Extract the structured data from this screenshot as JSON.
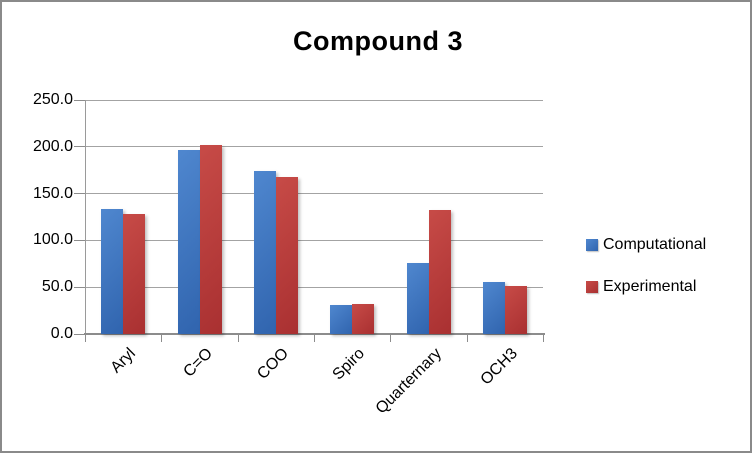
{
  "title": "Compound 3",
  "colors": {
    "frame_border": "#8a8a8a",
    "gridline": "#a3a3a3",
    "axis": "#8c8c8c",
    "text": "#000000"
  },
  "legend": {
    "items": [
      {
        "label": "Computational",
        "color_top": "#4f87cf",
        "color_bottom": "#3064ae"
      },
      {
        "label": "Experimental",
        "color_top": "#c74b47",
        "color_bottom": "#a93031"
      }
    ]
  },
  "chart_data": {
    "type": "bar",
    "title": "Compound 3",
    "categories": [
      "Aryl",
      "C=O",
      "COO",
      "Spiro",
      "Quarternary",
      "OCH3"
    ],
    "series": [
      {
        "name": "Computational",
        "color_top": "#4f87cf",
        "color_bottom": "#3064ae",
        "values": [
          133.5,
          196.8,
          173.8,
          30.6,
          75.7,
          55.4
        ]
      },
      {
        "name": "Experimental",
        "color_top": "#c74b47",
        "color_bottom": "#a93031",
        "values": [
          128.3,
          201.5,
          167.5,
          32.3,
          132.5,
          51.5
        ]
      }
    ],
    "xlabel": "",
    "ylabel": "",
    "ylim": [
      0,
      250
    ],
    "ytick_step": 50,
    "ytick_labels": [
      "0.0",
      "50.0",
      "100.0",
      "150.0",
      "200.0",
      "250.0"
    ],
    "grid": true,
    "legend_position": "right"
  }
}
